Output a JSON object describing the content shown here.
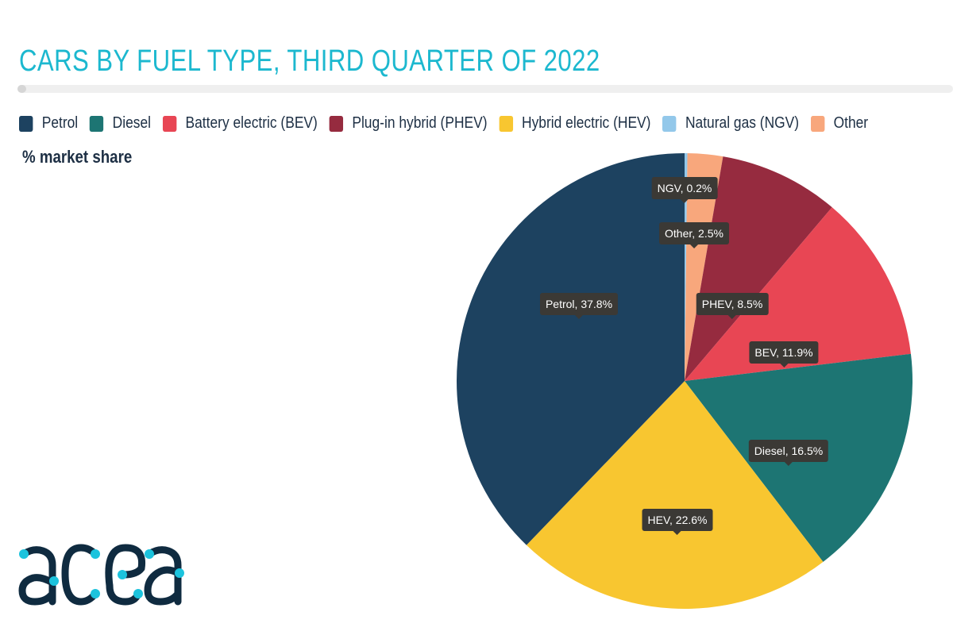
{
  "chart_data": {
    "type": "pie",
    "title": "CARS BY FUEL TYPE, THIRD QUARTER OF 2022",
    "subtitle": "% market share",
    "legend": [
      {
        "name": "Petrol",
        "color": "#1d4260"
      },
      {
        "name": "Diesel",
        "color": "#1d7573"
      },
      {
        "name": "Battery electric (BEV)",
        "color": "#e84654"
      },
      {
        "name": "Plug-in hybrid (PHEV)",
        "color": "#962b3f"
      },
      {
        "name": "Hybrid electric (HEV)",
        "color": "#f8c630"
      },
      {
        "name": "Natural gas (NGV)",
        "color": "#93c8ea"
      },
      {
        "name": "Other",
        "color": "#f8a77c"
      }
    ],
    "legend_position": "top",
    "slices": [
      {
        "label": "NGV",
        "value": 0.2,
        "color": "#93c8ea",
        "data_label": "NGV, 0.2%"
      },
      {
        "label": "Other",
        "value": 2.5,
        "color": "#f8a77c",
        "data_label": "Other, 2.5%"
      },
      {
        "label": "PHEV",
        "value": 8.5,
        "color": "#962b3f",
        "data_label": "PHEV, 8.5%"
      },
      {
        "label": "BEV",
        "value": 11.9,
        "color": "#e84654",
        "data_label": "BEV, 11.9%"
      },
      {
        "label": "Diesel",
        "value": 16.5,
        "color": "#1d7573",
        "data_label": "Diesel, 16.5%"
      },
      {
        "label": "HEV",
        "value": 22.6,
        "color": "#f8c630",
        "data_label": "HEV, 22.6%"
      },
      {
        "label": "Petrol",
        "value": 37.8,
        "color": "#1d4260",
        "data_label": "Petrol, 37.8%"
      }
    ]
  },
  "logo": {
    "text": "acea"
  }
}
